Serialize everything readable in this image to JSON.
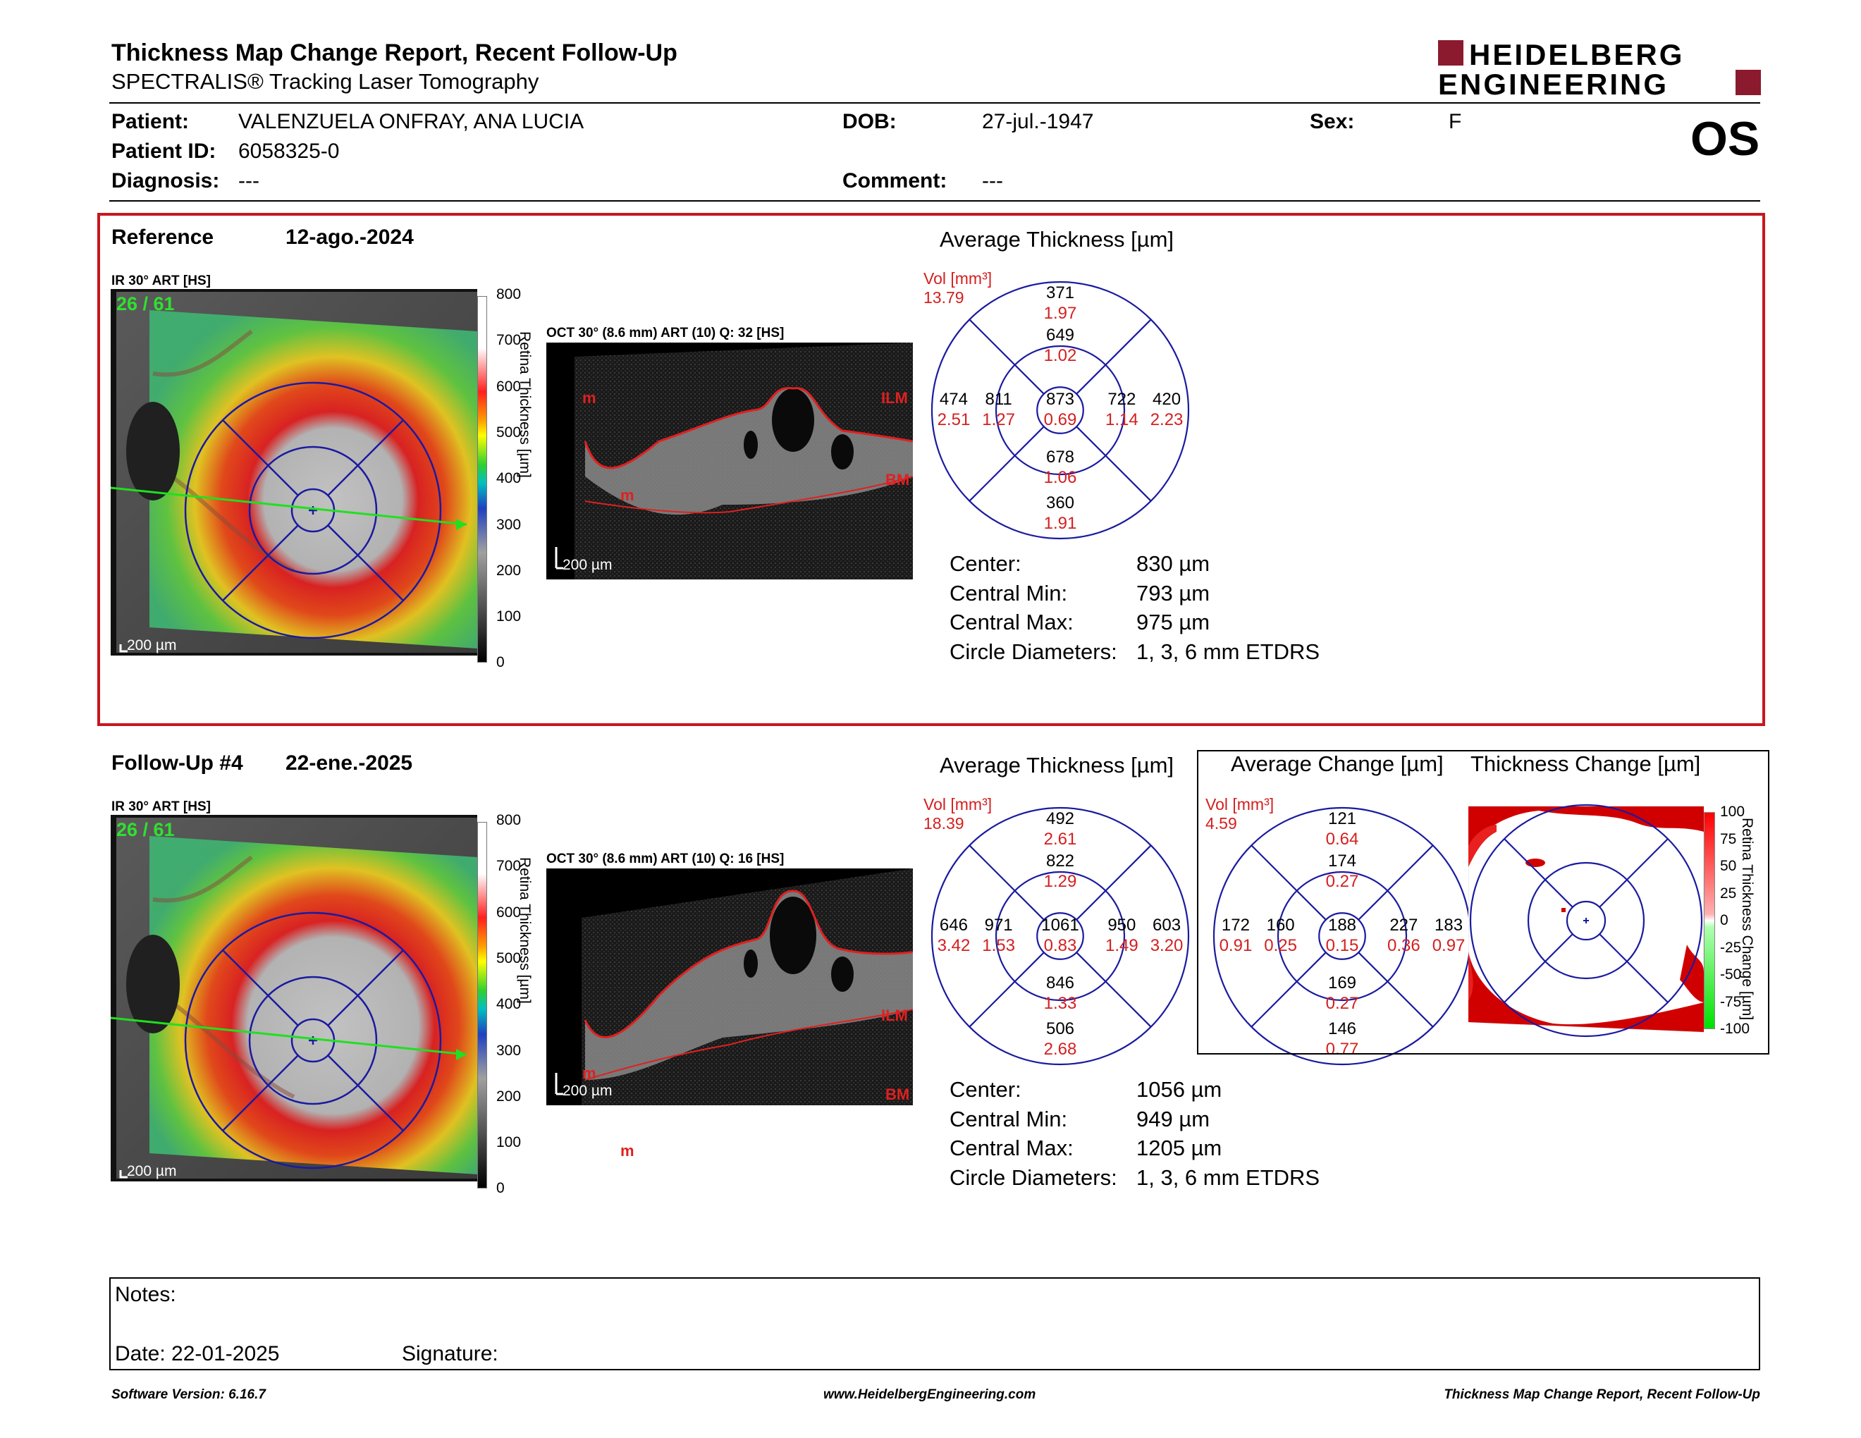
{
  "header": {
    "title": "Thickness Map Change Report, Recent Follow-Up",
    "subtitle": "SPECTRALIS® Tracking Laser Tomography",
    "brand_top": "HEIDELBERG",
    "brand_bottom": "ENGINEERING",
    "eye": "OS",
    "brand_color": "#8b1a2e"
  },
  "patient": {
    "patient_label": "Patient:",
    "patient_value": "VALENZUELA ONFRAY, ANA LUCIA",
    "dob_label": "DOB:",
    "dob_value": "27-jul.-1947",
    "sex_label": "Sex:",
    "sex_value": "F",
    "id_label": "Patient ID:",
    "id_value": "6058325-0",
    "diag_label": "Diagnosis:",
    "diag_value": "---",
    "comment_label": "Comment:",
    "comment_value": "---"
  },
  "reference": {
    "label": "Reference",
    "date": "12-ago.-2024",
    "ir_label": "IR 30° ART [HS]",
    "counter": "26 / 61",
    "scale_bar": "200 µm",
    "oct_label": "OCT 30° (8.6 mm) ART (10) Q: 32 [HS]",
    "oct_scale": "200 µm",
    "ilm": "ILM",
    "bm": "BM",
    "m": "m",
    "avg_title": "Average Thickness [µm]",
    "vol_label": "Vol [mm³]",
    "vol_value": "13.79",
    "grid": {
      "outer_sup": [
        "371",
        "1.97"
      ],
      "inner_sup": [
        "649",
        "1.02"
      ],
      "outer_temp": [
        "474",
        "2.51"
      ],
      "inner_temp": [
        "811",
        "1.27"
      ],
      "center": [
        "873",
        "0.69"
      ],
      "inner_nasal": [
        "722",
        "1.14"
      ],
      "outer_nasal": [
        "420",
        "2.23"
      ],
      "inner_inf": [
        "678",
        "1.06"
      ],
      "outer_inf": [
        "360",
        "1.91"
      ]
    },
    "stats": [
      {
        "label": "Center:",
        "value": "830 µm"
      },
      {
        "label": "Central Min:",
        "value": "793 µm"
      },
      {
        "label": "Central Max:",
        "value": "975 µm"
      },
      {
        "label": "Circle Diameters:",
        "value": "1, 3, 6 mm ETDRS"
      }
    ]
  },
  "followup": {
    "label": "Follow-Up #4",
    "date": "22-ene.-2025",
    "ir_label": "IR 30° ART [HS]",
    "counter": "26 / 61",
    "scale_bar": "200 µm",
    "oct_label": "OCT 30° (8.6 mm) ART (10) Q: 16 [HS]",
    "oct_scale": "200 µm",
    "ilm": "ILM",
    "bm": "BM",
    "m": "m",
    "avg_title": "Average Thickness [µm]",
    "vol_label": "Vol [mm³]",
    "vol_value": "18.39",
    "grid": {
      "outer_sup": [
        "492",
        "2.61"
      ],
      "inner_sup": [
        "822",
        "1.29"
      ],
      "outer_temp": [
        "646",
        "3.42"
      ],
      "inner_temp": [
        "971",
        "1.53"
      ],
      "center": [
        "1061",
        "0.83"
      ],
      "inner_nasal": [
        "950",
        "1.49"
      ],
      "outer_nasal": [
        "603",
        "3.20"
      ],
      "inner_inf": [
        "846",
        "1.33"
      ],
      "outer_inf": [
        "506",
        "2.68"
      ]
    },
    "stats": [
      {
        "label": "Center:",
        "value": "1056 µm"
      },
      {
        "label": "Central Min:",
        "value": "949 µm"
      },
      {
        "label": "Central Max:",
        "value": "1205 µm"
      },
      {
        "label": "Circle Diameters:",
        "value": "1, 3, 6 mm ETDRS"
      }
    ],
    "change_title": "Average Change [µm]",
    "change_vol_label": "Vol [mm³]",
    "change_vol_value": "4.59",
    "change_grid": {
      "outer_sup": [
        "121",
        "0.64"
      ],
      "inner_sup": [
        "174",
        "0.27"
      ],
      "outer_temp": [
        "172",
        "0.91"
      ],
      "inner_temp": [
        "160",
        "0.25"
      ],
      "center": [
        "188",
        "0.15"
      ],
      "inner_nasal": [
        "227",
        "0.36"
      ],
      "outer_nasal": [
        "183",
        "0.97"
      ],
      "inner_inf": [
        "169",
        "0.27"
      ],
      "outer_inf": [
        "146",
        "0.77"
      ]
    },
    "tchange_title": "Thickness Change [µm]"
  },
  "thickness_scale": {
    "ticks": [
      "800",
      "700",
      "600",
      "500",
      "400",
      "300",
      "200",
      "100",
      "0"
    ],
    "axis_label": "Retina Thickness [µm]"
  },
  "change_scale": {
    "ticks": [
      "100",
      "75",
      "50",
      "25",
      "0",
      "-25",
      "-50",
      "-75",
      "-100"
    ],
    "axis_label": "Retina Thickness Change [µm]"
  },
  "notes": {
    "notes_label": "Notes:",
    "date_label": "Date: 22-01-2025",
    "signature_label": "Signature:"
  },
  "footer": {
    "software": "Software Version: 6.16.7",
    "website": "www.HeidelbergEngineering.com",
    "report": "Thickness Map Change Report, Recent Follow-Up"
  }
}
